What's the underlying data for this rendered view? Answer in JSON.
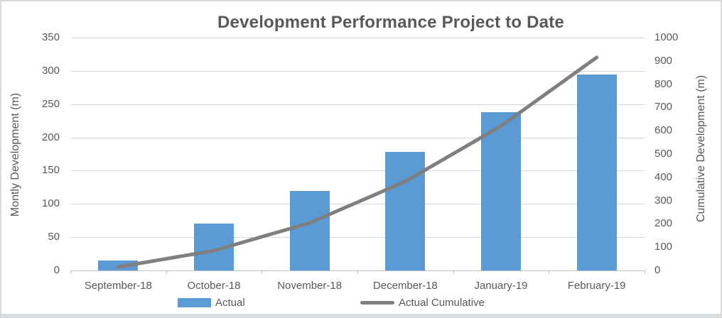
{
  "chart_data": {
    "type": "combo",
    "title": "Development Performance Project to Date",
    "categories": [
      "September-18",
      "October-18",
      "November-18",
      "December-18",
      "January-19",
      "February-19"
    ],
    "series": [
      {
        "name": "Actual",
        "type": "bar",
        "axis": "left",
        "color": "#5B9BD5",
        "values": [
          15,
          70,
          119,
          178,
          238,
          295
        ]
      },
      {
        "name": "Actual Cumulative",
        "type": "line",
        "axis": "right",
        "color": "#7F7F7F",
        "values": [
          15,
          85,
          204,
          382,
          620,
          915
        ]
      }
    ],
    "left_axis": {
      "label": "Montly Development (m)",
      "min": 0,
      "max": 350,
      "step": 50
    },
    "right_axis": {
      "label": "Cumulative Development (m)",
      "min": 0,
      "max": 1000,
      "step": 100
    },
    "grid": true,
    "legend_position": "bottom",
    "colors": {
      "bar": "#5B9BD5",
      "line": "#7F7F7F",
      "text": "#595959",
      "gridline": "#D9D9D9",
      "axis_line": "#BFBFBF",
      "frame_border": "#D9D9D9",
      "bottom_strip": "#D9DEE4"
    }
  }
}
